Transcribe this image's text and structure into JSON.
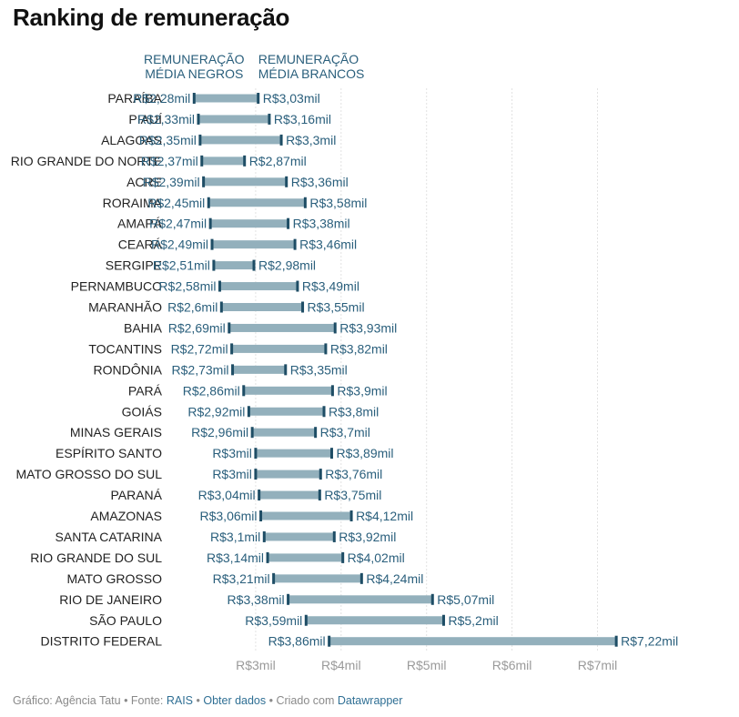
{
  "title": "Ranking de remuneração",
  "colors": {
    "bar": "#93b0bc",
    "marker": "#1e4d65",
    "label": "#2a5f7c",
    "grid": "#e2e2e2",
    "axis_text": "#9a9a9a"
  },
  "chart_data": {
    "type": "range",
    "column_headers": {
      "negros": [
        "REMUNERAÇÃO",
        "MÉDIA NEGROS"
      ],
      "brancos": [
        "REMUNERAÇÃO",
        "MÉDIA BRANCOS"
      ]
    },
    "xlim": [
      2.0,
      7.5
    ],
    "x_ticks": [
      3,
      4,
      5,
      6,
      7
    ],
    "x_tick_labels": [
      "R$3mil",
      "R$4mil",
      "R$5mil",
      "R$6mil",
      "R$7mil"
    ],
    "grid": true,
    "rows": [
      {
        "state": "PARAÍBA",
        "negros": 2.28,
        "negros_label": "R$2,28mil",
        "brancos": 3.03,
        "brancos_label": "R$3,03mil"
      },
      {
        "state": "PIAUÍ",
        "negros": 2.33,
        "negros_label": "R$2,33mil",
        "brancos": 3.16,
        "brancos_label": "R$3,16mil"
      },
      {
        "state": "ALAGOAS",
        "negros": 2.35,
        "negros_label": "R$2,35mil",
        "brancos": 3.3,
        "brancos_label": "R$3,3mil"
      },
      {
        "state": "RIO GRANDE DO NORTE",
        "negros": 2.37,
        "negros_label": "R$2,37mil",
        "brancos": 2.87,
        "brancos_label": "R$2,87mil"
      },
      {
        "state": "ACRE",
        "negros": 2.39,
        "negros_label": "R$2,39mil",
        "brancos": 3.36,
        "brancos_label": "R$3,36mil"
      },
      {
        "state": "RORAIMA",
        "negros": 2.45,
        "negros_label": "R$2,45mil",
        "brancos": 3.58,
        "brancos_label": "R$3,58mil"
      },
      {
        "state": "AMAPÁ",
        "negros": 2.47,
        "negros_label": "R$2,47mil",
        "brancos": 3.38,
        "brancos_label": "R$3,38mil"
      },
      {
        "state": "CEARÁ",
        "negros": 2.49,
        "negros_label": "R$2,49mil",
        "brancos": 3.46,
        "brancos_label": "R$3,46mil"
      },
      {
        "state": "SERGIPE",
        "negros": 2.51,
        "negros_label": "R$2,51mil",
        "brancos": 2.98,
        "brancos_label": "R$2,98mil"
      },
      {
        "state": "PERNAMBUCO",
        "negros": 2.58,
        "negros_label": "R$2,58mil",
        "brancos": 3.49,
        "brancos_label": "R$3,49mil"
      },
      {
        "state": "MARANHÃO",
        "negros": 2.6,
        "negros_label": "R$2,6mil",
        "brancos": 3.55,
        "brancos_label": "R$3,55mil"
      },
      {
        "state": "BAHIA",
        "negros": 2.69,
        "negros_label": "R$2,69mil",
        "brancos": 3.93,
        "brancos_label": "R$3,93mil"
      },
      {
        "state": "TOCANTINS",
        "negros": 2.72,
        "negros_label": "R$2,72mil",
        "brancos": 3.82,
        "brancos_label": "R$3,82mil"
      },
      {
        "state": "RONDÔNIA",
        "negros": 2.73,
        "negros_label": "R$2,73mil",
        "brancos": 3.35,
        "brancos_label": "R$3,35mil"
      },
      {
        "state": "PARÁ",
        "negros": 2.86,
        "negros_label": "R$2,86mil",
        "brancos": 3.9,
        "brancos_label": "R$3,9mil"
      },
      {
        "state": "GOIÁS",
        "negros": 2.92,
        "negros_label": "R$2,92mil",
        "brancos": 3.8,
        "brancos_label": "R$3,8mil"
      },
      {
        "state": "MINAS GERAIS",
        "negros": 2.96,
        "negros_label": "R$2,96mil",
        "brancos": 3.7,
        "brancos_label": "R$3,7mil"
      },
      {
        "state": "ESPÍRITO SANTO",
        "negros": 3.0,
        "negros_label": "R$3mil",
        "brancos": 3.89,
        "brancos_label": "R$3,89mil"
      },
      {
        "state": "MATO GROSSO DO SUL",
        "negros": 3.0,
        "negros_label": "R$3mil",
        "brancos": 3.76,
        "brancos_label": "R$3,76mil"
      },
      {
        "state": "PARANÁ",
        "negros": 3.04,
        "negros_label": "R$3,04mil",
        "brancos": 3.75,
        "brancos_label": "R$3,75mil"
      },
      {
        "state": "AMAZONAS",
        "negros": 3.06,
        "negros_label": "R$3,06mil",
        "brancos": 4.12,
        "brancos_label": "R$4,12mil"
      },
      {
        "state": "SANTA CATARINA",
        "negros": 3.1,
        "negros_label": "R$3,1mil",
        "brancos": 3.92,
        "brancos_label": "R$3,92mil"
      },
      {
        "state": "RIO GRANDE DO SUL",
        "negros": 3.14,
        "negros_label": "R$3,14mil",
        "brancos": 4.02,
        "brancos_label": "R$4,02mil"
      },
      {
        "state": "MATO GROSSO",
        "negros": 3.21,
        "negros_label": "R$3,21mil",
        "brancos": 4.24,
        "brancos_label": "R$4,24mil"
      },
      {
        "state": "RIO DE JANEIRO",
        "negros": 3.38,
        "negros_label": "R$3,38mil",
        "brancos": 5.07,
        "brancos_label": "R$5,07mil"
      },
      {
        "state": "SÃO PAULO",
        "negros": 3.59,
        "negros_label": "R$3,59mil",
        "brancos": 5.2,
        "brancos_label": "R$5,2mil"
      },
      {
        "state": "DISTRITO FEDERAL",
        "negros": 3.86,
        "negros_label": "R$3,86mil",
        "brancos": 7.22,
        "brancos_label": "R$7,22mil"
      }
    ]
  },
  "footer": {
    "prefix": "Gráfico: Agência Tatu • Fonte: ",
    "source_link": "RAIS",
    "sep1": " • ",
    "data_link": "Obter dados",
    "sep2": " • Criado com ",
    "tool_link": "Datawrapper"
  }
}
